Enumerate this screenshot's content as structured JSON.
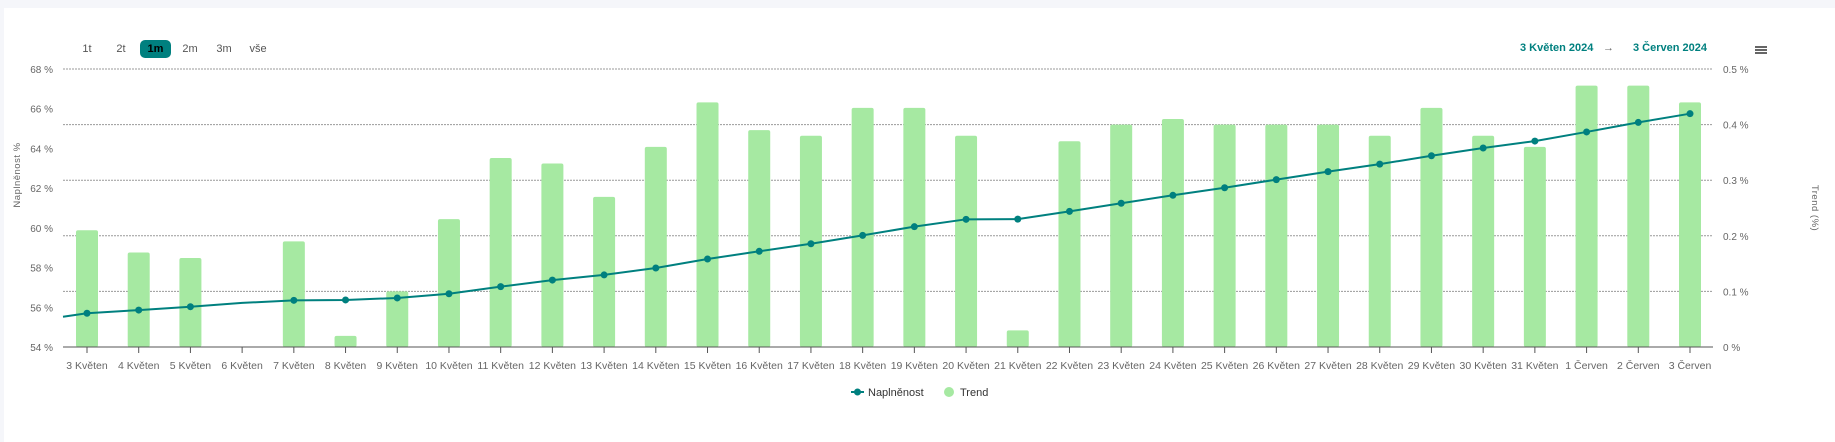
{
  "toolbar": {
    "range_buttons": [
      {
        "label": "1t"
      },
      {
        "label": "2t"
      },
      {
        "label": "1m",
        "active": true
      },
      {
        "label": "2m"
      },
      {
        "label": "3m"
      },
      {
        "label": "vše"
      }
    ],
    "date_from": "3 Květen 2024",
    "arrow": "→",
    "date_to": "3 Červen 2024",
    "menu_icon": "hamburger-menu-icon"
  },
  "colors": {
    "line": "#00807f",
    "bar": "#a6e9a2",
    "grid": "#999999",
    "accent": "#00807f"
  },
  "chart_data": {
    "type": "bar+line",
    "categories": [
      "3 Květen",
      "4 Květen",
      "5 Květen",
      "6 Květen",
      "7 Květen",
      "8 Květen",
      "9 Květen",
      "10 Květen",
      "11 Květen",
      "12 Květen",
      "13 Květen",
      "14 Květen",
      "15 Květen",
      "16 Květen",
      "17 Květen",
      "18 Květen",
      "19 Květen",
      "20 Květen",
      "21 Květen",
      "22 Květen",
      "23 Květen",
      "24 Květen",
      "25 Květen",
      "26 Květen",
      "27 Květen",
      "28 Květen",
      "29 Květen",
      "30 Květen",
      "31 Květen",
      "1 Červen",
      "2 Červen",
      "3 Červen"
    ],
    "y_left": {
      "label": "Naplněnost %",
      "range": [
        54,
        68
      ],
      "ticks": [
        "54 %",
        "56 %",
        "58 %",
        "60 %",
        "62 %",
        "64 %",
        "66 %",
        "68 %"
      ],
      "tick_values": [
        54,
        56,
        58,
        60,
        62,
        64,
        66,
        68
      ]
    },
    "y_right": {
      "label": "Trend (%)",
      "range": [
        0,
        0.5
      ],
      "ticks": [
        "0 %",
        "0.1 %",
        "0.2 %",
        "0.3 %",
        "0.4 %",
        "0.5 %"
      ],
      "tick_values": [
        0,
        0.1,
        0.2,
        0.3,
        0.4,
        0.5
      ]
    },
    "grid": true,
    "legend_position": "bottom-center",
    "series": [
      {
        "name": "Naplněnost",
        "type": "line",
        "axis": "left",
        "values": [
          55.7,
          55.86,
          56.03,
          56.22,
          56.35,
          56.37,
          56.47,
          56.68,
          57.04,
          57.37,
          57.63,
          57.98,
          58.43,
          58.82,
          59.2,
          59.62,
          60.06,
          60.43,
          60.44,
          60.83,
          61.24,
          61.64,
          62.02,
          62.43,
          62.83,
          63.21,
          63.63,
          64.02,
          64.37,
          64.83,
          65.31,
          65.75
        ]
      },
      {
        "name": "Trend",
        "type": "bar",
        "axis": "right",
        "values": [
          0.21,
          0.17,
          0.16,
          0,
          0.19,
          0.02,
          0.1,
          0.23,
          0.34,
          0.33,
          0.27,
          0.36,
          0.44,
          0.39,
          0.38,
          0.43,
          0.43,
          0.38,
          0.03,
          0.37,
          0.4,
          0.41,
          0.4,
          0.4,
          0.4,
          0.38,
          0.43,
          0.38,
          0.36,
          0.47,
          0.47,
          0.44
        ]
      }
    ]
  }
}
